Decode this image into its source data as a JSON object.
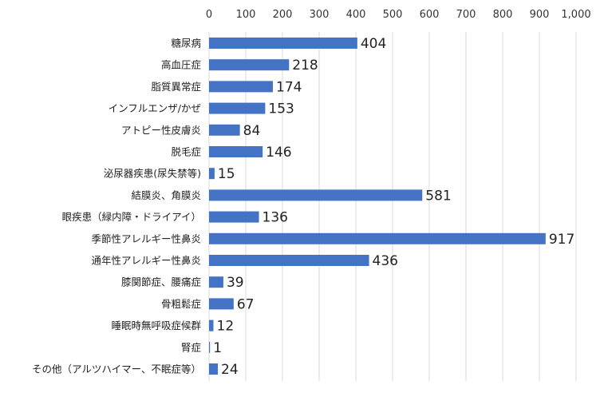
{
  "chart_data": {
    "type": "bar",
    "orientation": "horizontal",
    "title": "",
    "xlabel": "",
    "ylabel": "",
    "xlim": [
      0,
      1000
    ],
    "x_ticks": [
      0,
      100,
      200,
      300,
      400,
      500,
      600,
      700,
      800,
      900,
      1000
    ],
    "x_tick_labels": [
      "0",
      "100",
      "200",
      "300",
      "400",
      "500",
      "600",
      "700",
      "800",
      "900",
      "1,000"
    ],
    "axis_position": "top",
    "grid": true,
    "legend": "none",
    "bar_color": "#4472c4",
    "categories": [
      "糖尿病",
      "高血圧症",
      "脂質異常症",
      "インフルエンザ/かぜ",
      "アトピー性皮膚炎",
      "脱毛症",
      "泌尿器疾患(尿失禁等)",
      "結膜炎、角膜炎",
      "眼疾患（緑内障・ドライアイ）",
      "季節性アレルギー性鼻炎",
      "通年性アレルギー性鼻炎",
      "膝関節症、腰痛症",
      "骨粗鬆症",
      "睡眠時無呼吸症候群",
      "腎症",
      "その他（アルツハイマー、不眠症等）"
    ],
    "values": [
      404,
      218,
      174,
      153,
      84,
      146,
      15,
      581,
      136,
      917,
      436,
      39,
      67,
      12,
      1,
      24
    ]
  }
}
